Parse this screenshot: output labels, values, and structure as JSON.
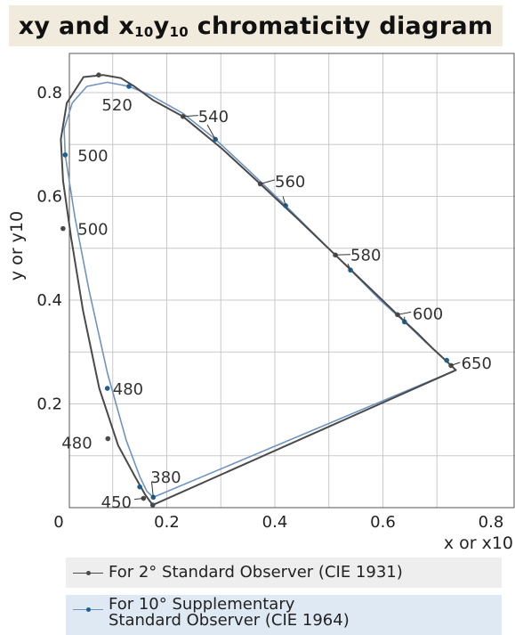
{
  "title": {
    "prefix": "xy and ",
    "x": "x",
    "xsub": "10",
    "y": "y",
    "ysub": "10",
    "suffix": " chromaticity diagram"
  },
  "legend": {
    "item_1931": "For 2° Standard Observer (CIE 1931)",
    "item_1964_line1": "For 10° Supplementary",
    "item_1964_line2": "Standard Observer (CIE 1964)"
  },
  "colors": {
    "cie1931": "#4a4a4a",
    "cie1964": "#6f93c2",
    "cie1964_marker": "#1f5f8f",
    "grid": "#c9c9c9",
    "title_bg": "#f1ebdd"
  },
  "chart_data": {
    "type": "line",
    "title": "xy and x10y10 chromaticity diagram",
    "xlabel": "x or x10",
    "ylabel": "y or y10",
    "xlim": [
      0,
      0.8
    ],
    "ylim": [
      0,
      0.85
    ],
    "xticks": [
      "0",
      "0.2",
      "0.4",
      "0.6",
      "0.8"
    ],
    "yticks": [
      "0.2",
      "0.4",
      "0.6",
      "0.8"
    ],
    "grid": true,
    "series": [
      {
        "name": "For 2° Standard Observer (CIE 1931)",
        "color": "#4a4a4a",
        "x": [
          0.174,
          0.16,
          0.141,
          0.11,
          0.075,
          0.045,
          0.023,
          0.008,
          0.004,
          0.015,
          0.046,
          0.082,
          0.115,
          0.14,
          0.174,
          0.23,
          0.302,
          0.373,
          0.444,
          0.512,
          0.575,
          0.627,
          0.666,
          0.691,
          0.72,
          0.735,
          0.174
        ],
        "y": [
          0.005,
          0.025,
          0.06,
          0.12,
          0.23,
          0.38,
          0.52,
          0.63,
          0.71,
          0.78,
          0.83,
          0.834,
          0.828,
          0.812,
          0.786,
          0.754,
          0.692,
          0.624,
          0.555,
          0.487,
          0.424,
          0.372,
          0.334,
          0.308,
          0.28,
          0.265,
          0.005
        ],
        "markers": [
          {
            "label": "380",
            "x": 0.174,
            "y": 0.005
          },
          {
            "label": "450",
            "x": 0.157,
            "y": 0.018
          },
          {
            "label": "480",
            "x": 0.091,
            "y": 0.133
          },
          {
            "label": "500",
            "x": 0.008,
            "y": 0.538
          },
          {
            "label": "520",
            "x": 0.074,
            "y": 0.834
          },
          {
            "label": "540",
            "x": 0.23,
            "y": 0.754
          },
          {
            "label": "560",
            "x": 0.373,
            "y": 0.624
          },
          {
            "label": "580",
            "x": 0.512,
            "y": 0.487
          },
          {
            "label": "600",
            "x": 0.627,
            "y": 0.372
          },
          {
            "label": "650",
            "x": 0.726,
            "y": 0.274
          }
        ]
      },
      {
        "name": "For 10° Supplementary Standard Observer (CIE 1964)",
        "color": "#6f93c2",
        "x": [
          0.175,
          0.163,
          0.15,
          0.125,
          0.09,
          0.056,
          0.03,
          0.012,
          0.01,
          0.025,
          0.052,
          0.09,
          0.13,
          0.17,
          0.23,
          0.29,
          0.352,
          0.42,
          0.48,
          0.54,
          0.595,
          0.64,
          0.68,
          0.71,
          0.735,
          0.175
        ],
        "y": [
          0.02,
          0.032,
          0.06,
          0.13,
          0.26,
          0.42,
          0.56,
          0.68,
          0.73,
          0.78,
          0.812,
          0.82,
          0.812,
          0.795,
          0.76,
          0.71,
          0.65,
          0.582,
          0.52,
          0.458,
          0.4,
          0.358,
          0.318,
          0.29,
          0.265,
          0.02
        ],
        "markers": [
          {
            "label": "380",
            "x": 0.175,
            "y": 0.02
          },
          {
            "label": "450",
            "x": 0.15,
            "y": 0.04
          },
          {
            "label": "480",
            "x": 0.09,
            "y": 0.23
          },
          {
            "label": "500",
            "x": 0.012,
            "y": 0.68
          },
          {
            "label": "520",
            "x": 0.13,
            "y": 0.812
          },
          {
            "label": "540",
            "x": 0.29,
            "y": 0.71
          },
          {
            "label": "560",
            "x": 0.42,
            "y": 0.582
          },
          {
            "label": "580",
            "x": 0.54,
            "y": 0.458
          },
          {
            "label": "600",
            "x": 0.64,
            "y": 0.358
          },
          {
            "label": "650",
            "x": 0.718,
            "y": 0.284
          }
        ]
      }
    ],
    "wavelength_labels": [
      {
        "text": "520",
        "x": 0.108,
        "y": 0.778,
        "anchor": "middle"
      },
      {
        "text": "540",
        "x": 0.258,
        "y": 0.755,
        "anchor": "start"
      },
      {
        "text": "560",
        "x": 0.4,
        "y": 0.63,
        "anchor": "start"
      },
      {
        "text": "580",
        "x": 0.54,
        "y": 0.488,
        "anchor": "start"
      },
      {
        "text": "600",
        "x": 0.655,
        "y": 0.375,
        "anchor": "start"
      },
      {
        "text": "650",
        "x": 0.745,
        "y": 0.28,
        "anchor": "start"
      },
      {
        "text": "500",
        "x": 0.035,
        "y": 0.68,
        "anchor": "start"
      },
      {
        "text": "500",
        "x": 0.035,
        "y": 0.538,
        "anchor": "start"
      },
      {
        "text": "480",
        "x": 0.1,
        "y": 0.23,
        "anchor": "start"
      },
      {
        "text": "480",
        "x": 0.062,
        "y": 0.126,
        "anchor": "end"
      },
      {
        "text": "380",
        "x": 0.17,
        "y": 0.06,
        "anchor": "start"
      },
      {
        "text": "450",
        "x": 0.135,
        "y": 0.012,
        "anchor": "end"
      }
    ]
  }
}
